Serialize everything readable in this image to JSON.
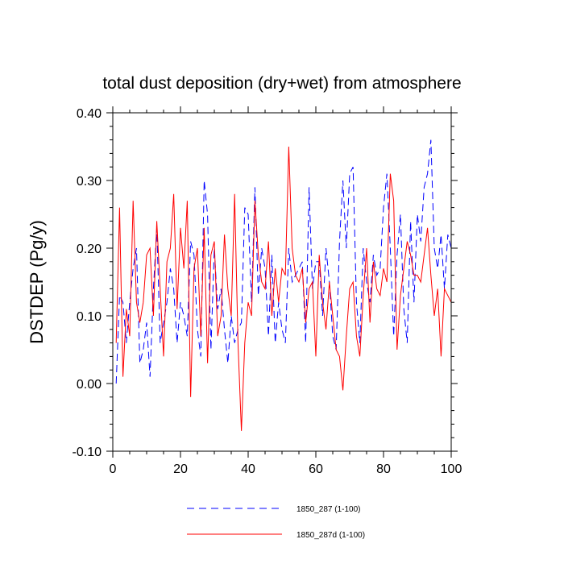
{
  "chart_data": {
    "type": "line",
    "title": "total dust deposition (dry+wet) from atmosphere",
    "xlabel": "",
    "ylabel": "DSTDEP  (Pg/y)",
    "xlim": [
      0,
      100
    ],
    "ylim": [
      -0.1,
      0.4
    ],
    "xticks": [
      0,
      20,
      40,
      60,
      80,
      100
    ],
    "xtick_labels": [
      "0",
      "20",
      "40",
      "60",
      "80",
      "100"
    ],
    "yticks": [
      -0.1,
      0.0,
      0.1,
      0.2,
      0.3,
      0.4
    ],
    "ytick_labels": [
      "-0.10",
      "0.00",
      "0.10",
      "0.20",
      "0.30",
      "0.40"
    ],
    "grid": false,
    "legend_position": "bottom-center",
    "x": [
      1,
      2,
      3,
      4,
      5,
      6,
      7,
      8,
      9,
      10,
      11,
      12,
      13,
      14,
      15,
      16,
      17,
      18,
      19,
      20,
      21,
      22,
      23,
      24,
      25,
      26,
      27,
      28,
      29,
      30,
      31,
      32,
      33,
      34,
      35,
      36,
      37,
      38,
      39,
      40,
      41,
      42,
      43,
      44,
      45,
      46,
      47,
      48,
      49,
      50,
      51,
      52,
      53,
      54,
      55,
      56,
      57,
      58,
      59,
      60,
      61,
      62,
      63,
      64,
      65,
      66,
      67,
      68,
      69,
      70,
      71,
      72,
      73,
      74,
      75,
      76,
      77,
      78,
      79,
      80,
      81,
      82,
      83,
      84,
      85,
      86,
      87,
      88,
      89,
      90,
      91,
      92,
      93,
      94,
      95,
      96,
      97,
      98,
      99,
      100
    ],
    "series": [
      {
        "name": "1850_287 (1-100)",
        "color": "#0000ff",
        "style": "dashed",
        "values": [
          0.0,
          0.13,
          0.12,
          0.06,
          0.12,
          0.17,
          0.2,
          0.03,
          0.05,
          0.09,
          0.01,
          0.14,
          0.23,
          0.06,
          0.09,
          0.12,
          0.17,
          0.14,
          0.06,
          0.12,
          0.1,
          0.07,
          0.21,
          0.19,
          0.08,
          0.04,
          0.3,
          0.25,
          0.05,
          0.2,
          0.11,
          0.14,
          0.08,
          0.03,
          0.1,
          0.06,
          0.08,
          0.09,
          0.26,
          0.25,
          0.12,
          0.29,
          0.13,
          0.2,
          0.17,
          0.07,
          0.19,
          0.06,
          0.12,
          0.08,
          0.06,
          0.2,
          0.15,
          0.16,
          0.17,
          0.18,
          0.06,
          0.29,
          0.14,
          0.18,
          0.18,
          0.1,
          0.2,
          0.15,
          0.07,
          0.05,
          0.21,
          0.3,
          0.2,
          0.31,
          0.32,
          0.12,
          0.06,
          0.2,
          0.15,
          0.12,
          0.19,
          0.16,
          0.17,
          0.26,
          0.31,
          0.2,
          0.07,
          0.19,
          0.25,
          0.11,
          0.06,
          0.24,
          0.12,
          0.25,
          0.21,
          0.29,
          0.31,
          0.36,
          0.2,
          0.17,
          0.22,
          0.14,
          0.22,
          0.2
        ]
      },
      {
        "name": "1850_287d (1-100)",
        "color": "#ff0000",
        "style": "solid",
        "values": [
          0.06,
          0.26,
          0.01,
          0.11,
          0.07,
          0.27,
          0.12,
          0.09,
          0.12,
          0.19,
          0.2,
          0.1,
          0.24,
          0.14,
          0.04,
          0.18,
          0.2,
          0.28,
          0.11,
          0.23,
          0.17,
          0.27,
          -0.02,
          0.17,
          0.2,
          0.07,
          0.23,
          0.03,
          0.19,
          0.21,
          0.07,
          0.1,
          0.22,
          0.14,
          0.1,
          0.28,
          0.06,
          -0.07,
          0.06,
          0.12,
          0.1,
          0.27,
          0.19,
          0.15,
          0.14,
          0.21,
          0.1,
          0.17,
          0.12,
          0.17,
          0.16,
          0.35,
          0.2,
          0.16,
          0.15,
          0.17,
          0.09,
          0.14,
          0.15,
          0.04,
          0.19,
          0.12,
          0.08,
          0.15,
          0.1,
          0.05,
          0.04,
          -0.01,
          0.07,
          0.14,
          0.15,
          0.07,
          0.04,
          0.13,
          0.2,
          0.09,
          0.18,
          0.14,
          0.13,
          0.17,
          0.15,
          0.31,
          0.27,
          0.05,
          0.13,
          0.17,
          0.21,
          0.19,
          0.16,
          0.16,
          0.15,
          0.19,
          0.23,
          0.16,
          0.1,
          0.14,
          0.04,
          0.14,
          0.13,
          0.12
        ]
      }
    ]
  }
}
